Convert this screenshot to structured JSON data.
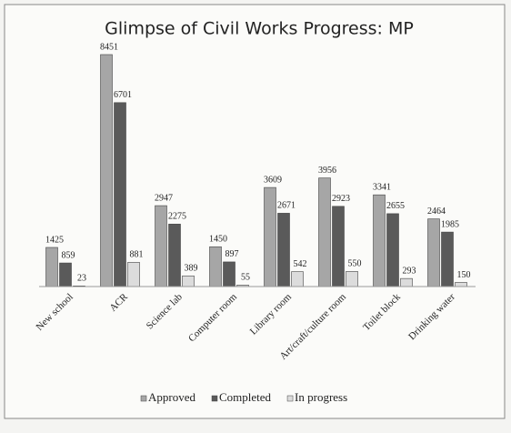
{
  "chart_data": {
    "type": "bar",
    "title": "Glimpse of Civil Works Progress: MP",
    "categories": [
      "New school",
      "ACR",
      "Science lab",
      "Computer room",
      "Library room",
      "Art/craft/culture room",
      "Toilet block",
      "Drinking water"
    ],
    "series": [
      {
        "name": "Approved",
        "color": "#a6a6a6",
        "values": [
          1425,
          8451,
          2947,
          1450,
          3609,
          3956,
          3341,
          2464
        ]
      },
      {
        "name": "Completed",
        "color": "#5a5a5a",
        "values": [
          859,
          6701,
          2275,
          897,
          2671,
          2923,
          2655,
          1985
        ]
      },
      {
        "name": "In progress",
        "color": "#dcdcdc",
        "values": [
          23,
          881,
          389,
          55,
          542,
          550,
          293,
          150
        ]
      }
    ],
    "legend": "bottom"
  }
}
